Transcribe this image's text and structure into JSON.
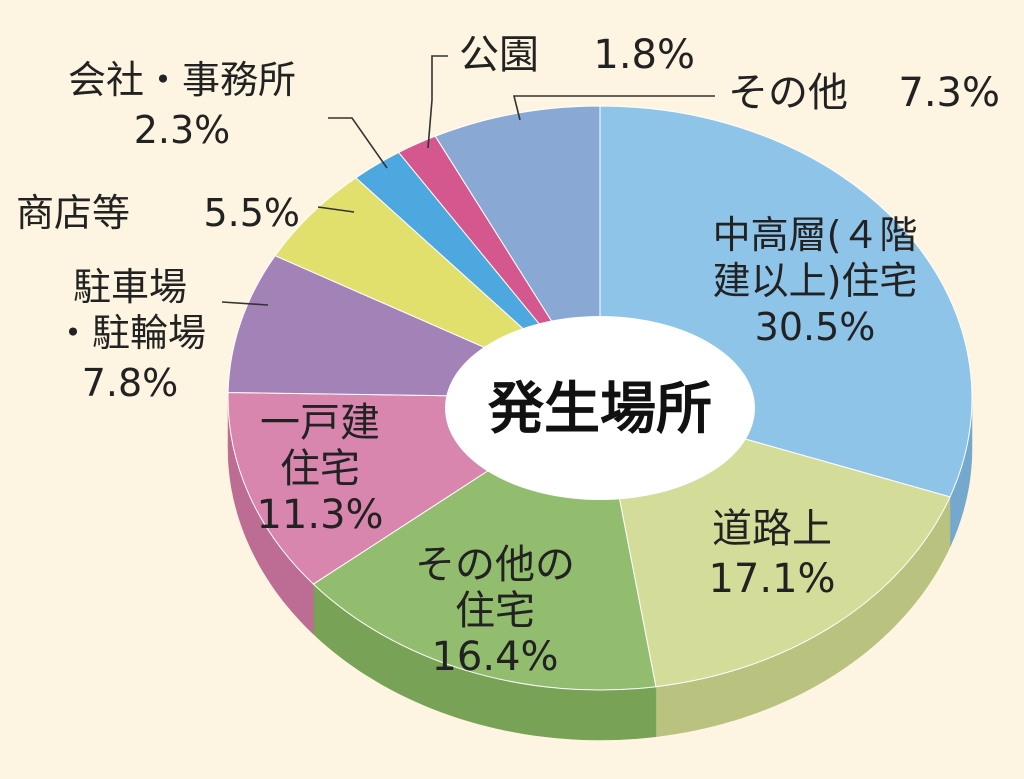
{
  "chart_data": {
    "type": "pie",
    "style": "3d-donut",
    "center_label": "発生場所",
    "slices": [
      {
        "label": [
          "中高層(４階",
          "建以上)住宅"
        ],
        "pct_text": "30.5%",
        "value": 30.5,
        "color": "#8ec4e8",
        "side": "#74a8cc"
      },
      {
        "label": [
          "道路上"
        ],
        "pct_text": "17.1%",
        "value": 17.1,
        "color": "#d3dc98",
        "side": "#b9c27e"
      },
      {
        "label": [
          "その他の",
          "住宅"
        ],
        "pct_text": "16.4%",
        "value": 16.4,
        "color": "#92bd6e",
        "side": "#78a356"
      },
      {
        "label": [
          "一戸建",
          "住宅"
        ],
        "pct_text": "11.3%",
        "value": 11.3,
        "color": "#d986ae",
        "side": "#bd6c94"
      },
      {
        "label": [
          "駐車場",
          "・駐輪場"
        ],
        "pct_text": "7.8%",
        "value": 7.8,
        "color": "#a382b8",
        "side": "#896a9e"
      },
      {
        "label": [
          "商店等"
        ],
        "pct_text": "5.5%",
        "value": 5.5,
        "color": "#e2e06c",
        "side": "#c6c454"
      },
      {
        "label": [
          "会社・事務所"
        ],
        "pct_text": "2.3%",
        "value": 2.3,
        "color": "#4ea8e0",
        "side": "#3a8cc2"
      },
      {
        "label": [
          "公園"
        ],
        "pct_text": "1.8%",
        "value": 1.8,
        "color": "#d4588e",
        "side": "#b44274"
      },
      {
        "label": [
          "その他"
        ],
        "pct_text": "7.3%",
        "value": 7.3,
        "color": "#8aa8d4",
        "side": "#7090ba"
      }
    ]
  }
}
